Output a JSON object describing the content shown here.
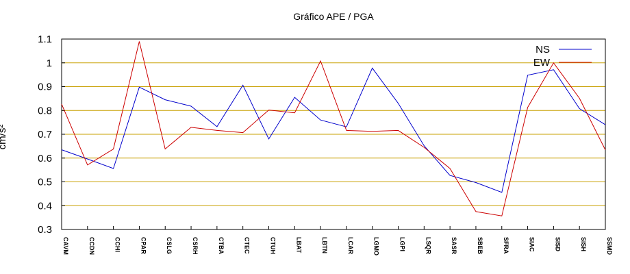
{
  "chart_data": {
    "type": "line",
    "title": "Gráfico  APE / PGA",
    "xlabel": "",
    "ylabel": "cm/s²",
    "ylim": [
      0.3,
      1.1
    ],
    "yticks": [
      "0.3",
      "0.4",
      "0.5",
      "0.6",
      "0.7",
      "0.8",
      "0.9",
      "1",
      "1.1"
    ],
    "grid": "horizontal",
    "legend_position": "top-right",
    "categories": [
      "CAVM",
      "CCDN",
      "CCHI",
      "CPAR",
      "CSLG",
      "CSRH",
      "CTBA",
      "CTEC",
      "CTUH",
      "LBAT",
      "LBTN",
      "LCAR",
      "LGMO",
      "LGPI",
      "LSQR",
      "SASR",
      "SBEB",
      "SFRA",
      "SIAC",
      "SISD",
      "SISH",
      "SSMD"
    ],
    "series": [
      {
        "name": "NS",
        "color": "#0000cc",
        "values": [
          0.635,
          0.596,
          0.556,
          0.898,
          0.845,
          0.818,
          0.732,
          0.906,
          0.68,
          0.855,
          0.76,
          0.731,
          0.978,
          0.83,
          0.652,
          0.527,
          0.497,
          0.456,
          0.948,
          0.971,
          0.808,
          0.74
        ]
      },
      {
        "name": "EW",
        "color": "#cc0000",
        "values": [
          0.827,
          0.571,
          0.638,
          1.09,
          0.638,
          0.729,
          0.716,
          0.707,
          0.802,
          0.79,
          1.008,
          0.716,
          0.712,
          0.716,
          0.645,
          0.556,
          0.375,
          0.357,
          0.813,
          1.0,
          0.851,
          0.634
        ]
      }
    ],
    "colors": {
      "grid": "#c8a000",
      "axis": "#000000"
    }
  }
}
